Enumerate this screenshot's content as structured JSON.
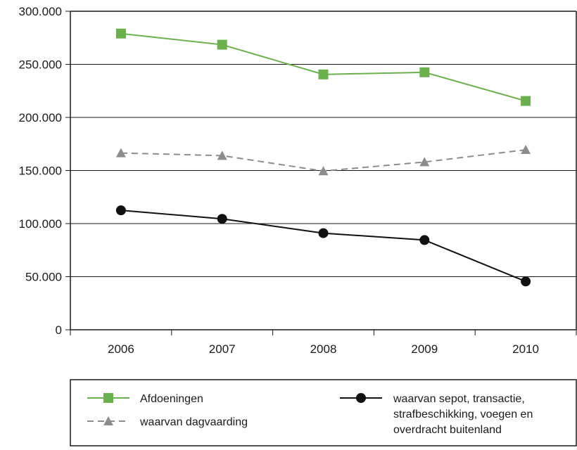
{
  "chart_data": {
    "type": "line",
    "categories": [
      "2006",
      "2007",
      "2008",
      "2009",
      "2010"
    ],
    "ylim": [
      0,
      300000
    ],
    "y_ticks": [
      "0",
      "50.000",
      "100.000",
      "150.000",
      "200.000",
      "250.000",
      "300.000"
    ],
    "grid": "horizontal",
    "legend_position": "bottom",
    "series": [
      {
        "name": "Afdoeningen",
        "values": [
          279000,
          268500,
          240500,
          242500,
          215500
        ],
        "color": "#6ab04c",
        "marker": "square",
        "line_style": "solid"
      },
      {
        "name": "waarvan dagvaarding",
        "values": [
          166500,
          164000,
          149500,
          158000,
          169500
        ],
        "color": "#8c8c8c",
        "marker": "triangle",
        "line_style": "dashed"
      },
      {
        "name_lines": [
          "waarvan sepot, transactie,",
          "strafbeschikking, voegen en",
          "overdracht buitenland"
        ],
        "values": [
          112500,
          104500,
          91000,
          84500,
          45500
        ],
        "color": "#111111",
        "marker": "circle",
        "line_style": "solid"
      }
    ]
  }
}
